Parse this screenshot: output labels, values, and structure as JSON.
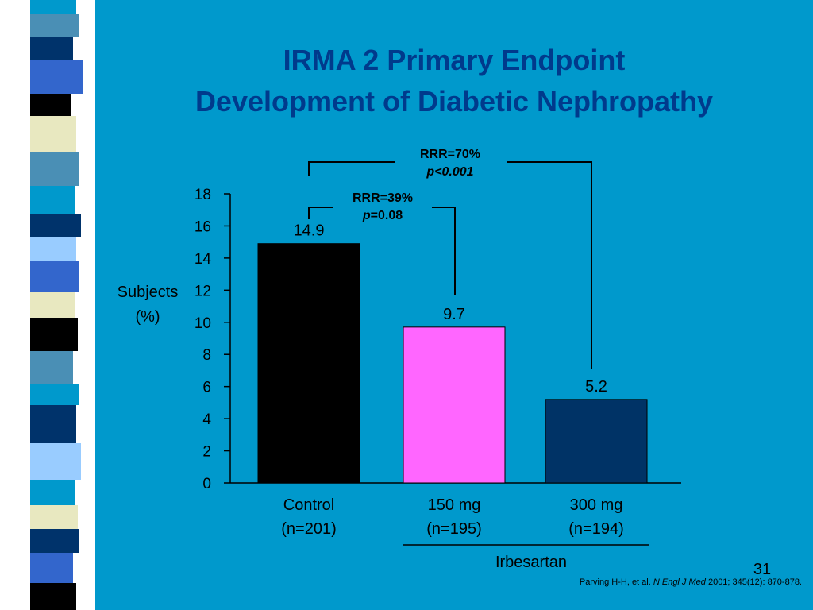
{
  "slide": {
    "title_line1": "IRMA 2 Primary Endpoint",
    "title_line2": "Development of Diabetic Nephropathy",
    "slide_number": "31",
    "citation": {
      "authors": "Parving H-H, et al.",
      "journal": "N Engl J Med",
      "details": "2001; 345(12): 870-878."
    },
    "colors": {
      "background": "#0099cc",
      "title": "#003a8c",
      "control_bar": "#000000",
      "irbesartan_150_bar": "#ff66ff",
      "irbesartan_300_bar": "#003366"
    }
  },
  "chart_data": {
    "type": "bar",
    "title": "",
    "ylabel": "Subjects (%)",
    "ylabel_lines": [
      "Subjects",
      "(%)"
    ],
    "ylim": [
      0,
      18
    ],
    "yticks": [
      0,
      2,
      4,
      6,
      8,
      10,
      12,
      14,
      16,
      18
    ],
    "grid": false,
    "categories": [
      {
        "name": "Control",
        "n": "(n=201)"
      },
      {
        "name": "150 mg",
        "n": "(n=195)"
      },
      {
        "name": "300 mg",
        "n": "(n=194)"
      }
    ],
    "values": [
      14.9,
      9.7,
      5.2
    ],
    "value_labels": [
      "14.9",
      "9.7",
      "5.2"
    ],
    "bar_colors": [
      "#000000",
      "#ff66ff",
      "#003366"
    ],
    "group_label": "Irbesartan",
    "comparisons": [
      {
        "label": "RRR=70%",
        "p_symbol": "p",
        "p_rest": "<0.001",
        "p_italic": true
      },
      {
        "label": "RRR=39%",
        "p_symbol": "p",
        "p_rest": "=0.08",
        "p_italic": false
      }
    ]
  }
}
